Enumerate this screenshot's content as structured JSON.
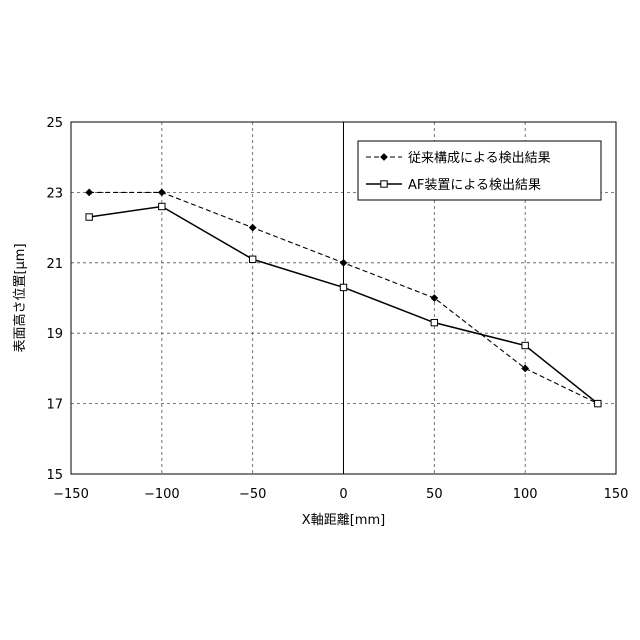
{
  "chart_data": {
    "type": "line",
    "xlabel": "X軸距離[mm]",
    "ylabel": "表面高さ位置[μm]",
    "xlim": [
      -150,
      150
    ],
    "ylim": [
      15,
      25
    ],
    "xticks": [
      -150,
      -100,
      -50,
      0,
      50,
      100,
      150
    ],
    "yticks": [
      15,
      17,
      19,
      21,
      23,
      25
    ],
    "xtick_labels": [
      "−150",
      "−100",
      "−50",
      "0",
      "50",
      "100",
      "150"
    ],
    "ytick_labels": [
      "15",
      "17",
      "19",
      "21",
      "23",
      "25"
    ],
    "grid": true,
    "legend_position": "top-right",
    "series": [
      {
        "name": "従来構成による検出結果",
        "line_style": "dashed",
        "marker": "diamond-filled",
        "color": "#000000",
        "x": [
          -140,
          -100,
          -50,
          0,
          50,
          100,
          140
        ],
        "y": [
          23.0,
          23.0,
          22.0,
          21.0,
          20.0,
          18.0,
          17.0
        ]
      },
      {
        "name": "AF装置による検出結果",
        "line_style": "solid",
        "marker": "square-open",
        "color": "#000000",
        "x": [
          -140,
          -100,
          -50,
          0,
          50,
          100,
          140
        ],
        "y": [
          22.3,
          22.6,
          21.1,
          20.3,
          19.3,
          18.65,
          17.0
        ]
      }
    ]
  }
}
